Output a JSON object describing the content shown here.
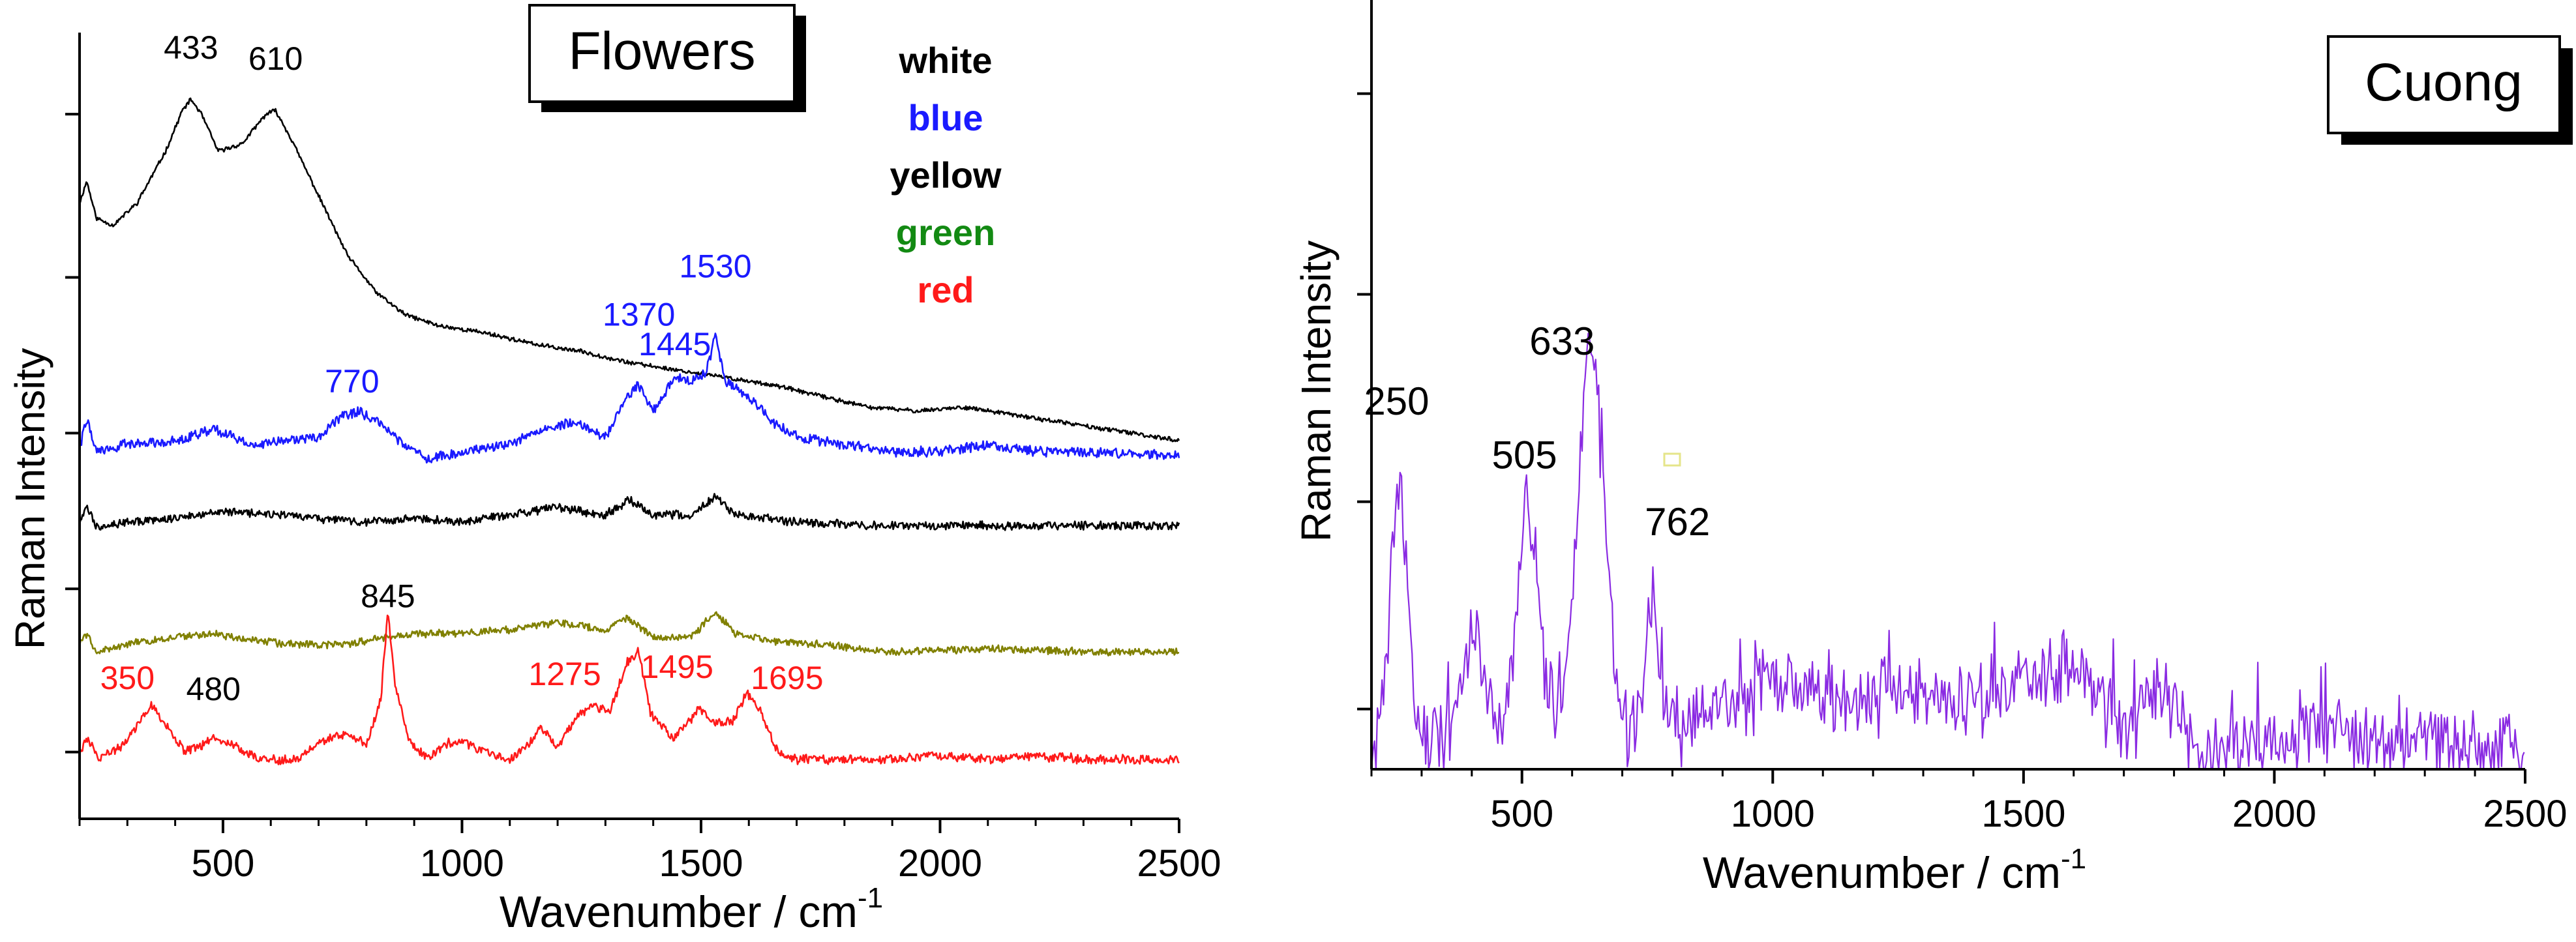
{
  "chart_data": [
    {
      "type": "line",
      "id": "flowers",
      "title": "Flowers",
      "xlabel": "Wavenumber  /  cm",
      "xlabel_sup": "-1",
      "ylabel": "Raman Intensity",
      "xlim": [
        200,
        2500
      ],
      "ylim": [
        0,
        100
      ],
      "xticks": [
        500,
        1000,
        1500,
        2000,
        2500
      ],
      "yticks": [
        5,
        27,
        48,
        69,
        91
      ],
      "legend": [
        {
          "label": "white",
          "color": "#000000"
        },
        {
          "label": "blue",
          "color": "#1a1aff"
        },
        {
          "label": "yellow",
          "color": "#000000"
        },
        {
          "label": "green",
          "color": "#138a13"
        },
        {
          "label": "red",
          "color": "#ff1a1a"
        }
      ],
      "series": [
        {
          "name": "white",
          "color": "#000000",
          "noise": 0.25,
          "seed": 11,
          "points": [
            [
              200,
              79
            ],
            [
              215,
              82
            ],
            [
              235,
              77
            ],
            [
              270,
              76
            ],
            [
              320,
              79
            ],
            [
              380,
              86
            ],
            [
              415,
              91.5
            ],
            [
              433,
              93
            ],
            [
              455,
              91
            ],
            [
              490,
              86
            ],
            [
              540,
              87
            ],
            [
              590,
              91
            ],
            [
              610,
              91.5
            ],
            [
              640,
              88
            ],
            [
              700,
              80
            ],
            [
              760,
              72
            ],
            [
              820,
              67
            ],
            [
              880,
              64
            ],
            [
              950,
              62.5
            ],
            [
              1050,
              61.5
            ],
            [
              1150,
              60
            ],
            [
              1250,
              59
            ],
            [
              1350,
              57.5
            ],
            [
              1450,
              56.5
            ],
            [
              1550,
              55.5
            ],
            [
              1650,
              54.5
            ],
            [
              1750,
              53
            ],
            [
              1850,
              51.5
            ],
            [
              1950,
              51
            ],
            [
              2050,
              51.5
            ],
            [
              2150,
              50.5
            ],
            [
              2250,
              49.5
            ],
            [
              2350,
              48.5
            ],
            [
              2500,
              47
            ]
          ]
        },
        {
          "name": "blue",
          "color": "#1a1aff",
          "noise": 0.6,
          "seed": 22,
          "points": [
            [
              200,
              46
            ],
            [
              215,
              50
            ],
            [
              235,
              45.5
            ],
            [
              300,
              46.5
            ],
            [
              400,
              47
            ],
            [
              480,
              48.5
            ],
            [
              560,
              46.5
            ],
            [
              640,
              47
            ],
            [
              700,
              47.5
            ],
            [
              755,
              50.5
            ],
            [
              785,
              51
            ],
            [
              830,
              49
            ],
            [
              880,
              46.5
            ],
            [
              930,
              44.5
            ],
            [
              1000,
              45.5
            ],
            [
              1100,
              46.5
            ],
            [
              1170,
              48.5
            ],
            [
              1230,
              49.5
            ],
            [
              1300,
              47.5
            ],
            [
              1340,
              52.5
            ],
            [
              1370,
              54.5
            ],
            [
              1400,
              51
            ],
            [
              1445,
              55.5
            ],
            [
              1480,
              55
            ],
            [
              1510,
              56
            ],
            [
              1530,
              61
            ],
            [
              1550,
              55
            ],
            [
              1600,
              53
            ],
            [
              1650,
              49.5
            ],
            [
              1700,
              47.5
            ],
            [
              1800,
              46.5
            ],
            [
              1900,
              45.5
            ],
            [
              2000,
              45.5
            ],
            [
              2100,
              46.5
            ],
            [
              2200,
              45.5
            ],
            [
              2300,
              45.5
            ],
            [
              2500,
              45
            ]
          ]
        },
        {
          "name": "yellow",
          "color": "#000000",
          "noise": 0.5,
          "seed": 33,
          "points": [
            [
              200,
              36
            ],
            [
              215,
              38
            ],
            [
              235,
              35.5
            ],
            [
              300,
              36
            ],
            [
              400,
              36.5
            ],
            [
              480,
              37.5
            ],
            [
              600,
              37
            ],
            [
              700,
              36.5
            ],
            [
              800,
              36
            ],
            [
              900,
              36.5
            ],
            [
              1000,
              36
            ],
            [
              1100,
              37
            ],
            [
              1200,
              38
            ],
            [
              1300,
              37
            ],
            [
              1350,
              39
            ],
            [
              1400,
              37
            ],
            [
              1480,
              37
            ],
            [
              1530,
              39.5
            ],
            [
              1570,
              37
            ],
            [
              1700,
              36
            ],
            [
              1900,
              35.5
            ],
            [
              2100,
              35.5
            ],
            [
              2300,
              35.5
            ],
            [
              2500,
              35.5
            ]
          ]
        },
        {
          "name": "green",
          "color": "#808000",
          "noise": 0.45,
          "seed": 44,
          "points": [
            [
              200,
              19.5
            ],
            [
              215,
              21
            ],
            [
              235,
              18.5
            ],
            [
              300,
              19.5
            ],
            [
              400,
              20.5
            ],
            [
              480,
              21
            ],
            [
              560,
              20
            ],
            [
              660,
              19.5
            ],
            [
              760,
              19.5
            ],
            [
              845,
              20.5
            ],
            [
              930,
              21
            ],
            [
              1000,
              21
            ],
            [
              1100,
              21.5
            ],
            [
              1200,
              22.5
            ],
            [
              1300,
              21.5
            ],
            [
              1345,
              23
            ],
            [
              1400,
              20.5
            ],
            [
              1480,
              20.5
            ],
            [
              1530,
              24
            ],
            [
              1570,
              21
            ],
            [
              1650,
              20
            ],
            [
              1750,
              19.5
            ],
            [
              1900,
              18.5
            ],
            [
              2100,
              19
            ],
            [
              2300,
              18.5
            ],
            [
              2500,
              18.5
            ]
          ]
        },
        {
          "name": "red",
          "color": "#ff1a1a",
          "noise": 0.55,
          "seed": 55,
          "points": [
            [
              200,
              5
            ],
            [
              215,
              7
            ],
            [
              240,
              4
            ],
            [
              290,
              6
            ],
            [
              330,
              9.5
            ],
            [
              350,
              11.5
            ],
            [
              375,
              9
            ],
            [
              420,
              5
            ],
            [
              460,
              6
            ],
            [
              480,
              7
            ],
            [
              520,
              6
            ],
            [
              580,
              4
            ],
            [
              650,
              4
            ],
            [
              710,
              6.5
            ],
            [
              760,
              7.5
            ],
            [
              800,
              6
            ],
            [
              830,
              12
            ],
            [
              845,
              24
            ],
            [
              860,
              14
            ],
            [
              890,
              6.5
            ],
            [
              930,
              4
            ],
            [
              960,
              6
            ],
            [
              1000,
              6.5
            ],
            [
              1050,
              5
            ],
            [
              1100,
              4
            ],
            [
              1140,
              6
            ],
            [
              1165,
              8.5
            ],
            [
              1200,
              5.5
            ],
            [
              1240,
              10
            ],
            [
              1275,
              11
            ],
            [
              1310,
              10.5
            ],
            [
              1345,
              17
            ],
            [
              1370,
              18.5
            ],
            [
              1395,
              10
            ],
            [
              1440,
              7
            ],
            [
              1475,
              9
            ],
            [
              1495,
              11
            ],
            [
              1530,
              9
            ],
            [
              1565,
              9
            ],
            [
              1595,
              13
            ],
            [
              1625,
              10.5
            ],
            [
              1660,
              5
            ],
            [
              1700,
              4
            ],
            [
              1800,
              4
            ],
            [
              1900,
              4
            ],
            [
              2000,
              4.5
            ],
            [
              2100,
              4
            ],
            [
              2200,
              4.5
            ],
            [
              2300,
              4
            ],
            [
              2500,
              4
            ]
          ]
        }
      ],
      "annotations": [
        {
          "text": "433",
          "x": 433,
          "y": 98.5,
          "color": "#000000"
        },
        {
          "text": "610",
          "x": 610,
          "y": 97,
          "color": "#000000"
        },
        {
          "text": "1530",
          "x": 1530,
          "y": 69,
          "color": "#1a1aff"
        },
        {
          "text": "1370",
          "x": 1370,
          "y": 62.5,
          "color": "#1a1aff"
        },
        {
          "text": "1445",
          "x": 1445,
          "y": 58.5,
          "color": "#1a1aff"
        },
        {
          "text": "770",
          "x": 770,
          "y": 53.5,
          "color": "#1a1aff"
        },
        {
          "text": "845",
          "x": 845,
          "y": 24.5,
          "color": "#000000"
        },
        {
          "text": "350",
          "x": 300,
          "y": 13.5,
          "color": "#ff1a1a"
        },
        {
          "text": "480",
          "x": 480,
          "y": 12,
          "color": "#000000"
        },
        {
          "text": "1275",
          "x": 1215,
          "y": 14,
          "color": "#ff1a1a"
        },
        {
          "text": "1495",
          "x": 1450,
          "y": 15,
          "color": "#ff1a1a"
        },
        {
          "text": "1695",
          "x": 1680,
          "y": 13.5,
          "color": "#ff1a1a"
        }
      ]
    },
    {
      "type": "line",
      "id": "cuong",
      "title": "Cuong",
      "xlabel": "Wavenumber  /  cm",
      "xlabel_sup": "-1",
      "ylabel": "Raman  Intensity",
      "xlim": [
        200,
        2500
      ],
      "ylim": [
        0,
        100
      ],
      "xticks": [
        500,
        1000,
        1500,
        2000,
        2500
      ],
      "yticks": [
        9,
        40,
        71,
        101
      ],
      "series": [
        {
          "name": "Cuong",
          "color": "#8a2be2",
          "noise": 4,
          "seed": 77,
          "spiky": true,
          "points": [
            [
              200,
              1
            ],
            [
              230,
              16
            ],
            [
              250,
              45
            ],
            [
              270,
              30
            ],
            [
              290,
              6
            ],
            [
              330,
              3
            ],
            [
              370,
              9
            ],
            [
              400,
              22
            ],
            [
              430,
              10
            ],
            [
              470,
              6
            ],
            [
              490,
              24
            ],
            [
              505,
              40
            ],
            [
              525,
              32
            ],
            [
              550,
              12
            ],
            [
              580,
              6
            ],
            [
              600,
              25
            ],
            [
              620,
              50
            ],
            [
              633,
              68
            ],
            [
              650,
              55
            ],
            [
              670,
              30
            ],
            [
              690,
              12
            ],
            [
              720,
              3
            ],
            [
              745,
              16
            ],
            [
              762,
              25
            ],
            [
              780,
              8
            ],
            [
              820,
              6
            ],
            [
              900,
              9
            ],
            [
              1000,
              14
            ],
            [
              1100,
              10
            ],
            [
              1200,
              11
            ],
            [
              1300,
              12
            ],
            [
              1400,
              10
            ],
            [
              1500,
              13
            ],
            [
              1580,
              16
            ],
            [
              1650,
              11
            ],
            [
              1700,
              6
            ],
            [
              1760,
              12
            ],
            [
              1800,
              10
            ],
            [
              1830,
              3
            ],
            [
              1900,
              3
            ],
            [
              2000,
              4
            ],
            [
              2100,
              5
            ],
            [
              2200,
              4
            ],
            [
              2300,
              4
            ],
            [
              2400,
              3
            ],
            [
              2500,
              2
            ]
          ]
        }
      ],
      "annotations": [
        {
          "text": "250",
          "x": 250,
          "y": 53,
          "color": "#000000"
        },
        {
          "text": "505",
          "x": 505,
          "y": 45,
          "color": "#000000"
        },
        {
          "text": "633",
          "x": 580,
          "y": 62,
          "color": "#000000"
        },
        {
          "text": "762",
          "x": 810,
          "y": 35,
          "color": "#000000"
        }
      ]
    }
  ]
}
